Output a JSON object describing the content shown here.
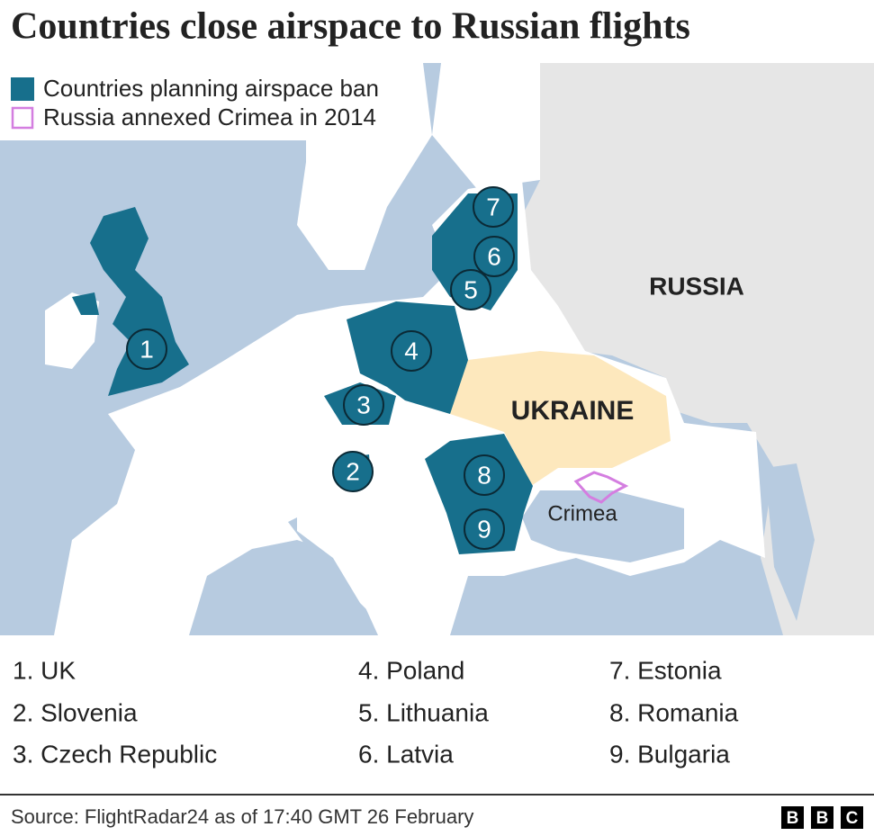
{
  "title": "Countries close airspace to Russian flights",
  "legend": [
    {
      "label": "Countries planning airspace ban"
    },
    {
      "label": "Russia annexed Crimea in 2014"
    }
  ],
  "map": {
    "labels": {
      "russia": "RUSSIA",
      "ukraine": "UKRAINE",
      "crimea": "Crimea"
    },
    "markers": [
      "1",
      "2",
      "3",
      "4",
      "5",
      "6",
      "7",
      "8",
      "9"
    ]
  },
  "list": [
    "1. UK",
    "2. Slovenia",
    "3. Czech Republic",
    "4. Poland",
    "5. Lithuania",
    "6. Latvia",
    "7. Estonia",
    "8. Romania",
    "9. Bulgaria"
  ],
  "footer": {
    "source": "Source: FlightRadar24 as of 17:40 GMT 26 February",
    "logo": [
      "B",
      "B",
      "C"
    ]
  }
}
